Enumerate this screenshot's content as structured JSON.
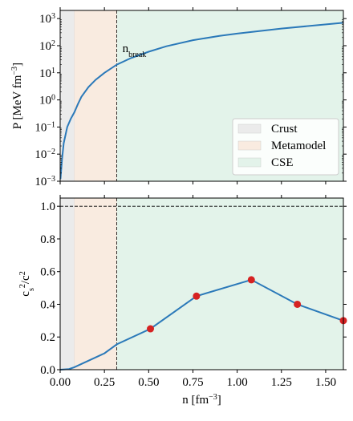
{
  "chart_data": [
    {
      "type": "line",
      "xlim": [
        0,
        1.6
      ],
      "ylim": [
        0.001,
        2000
      ],
      "log_y": true,
      "xticks": [
        0,
        0.25,
        0.5,
        0.75,
        1,
        1.25,
        1.5
      ],
      "yticks": [
        {
          "value": 0.001,
          "label": "10",
          "sup": "−3"
        },
        {
          "value": 0.01,
          "label": "10",
          "sup": "−2"
        },
        {
          "value": 0.1,
          "label": "10",
          "sup": "−1"
        },
        {
          "value": 1,
          "label": "10",
          "sup": "0"
        },
        {
          "value": 10,
          "label": "10",
          "sup": "1"
        },
        {
          "value": 100,
          "label": "10",
          "sup": "2"
        },
        {
          "value": 1000,
          "label": "10",
          "sup": "3"
        }
      ],
      "ylabel": {
        "main": "P [MeV fm",
        "sup": "−3",
        "end": "]"
      },
      "regions": [
        {
          "name": "Crust",
          "from": 0,
          "to": 0.08,
          "color": "#ebebeb"
        },
        {
          "name": "Metamodel",
          "from": 0.08,
          "to": 0.32,
          "color": "#f9ebe0"
        },
        {
          "name": "CSE",
          "from": 0.32,
          "to": 1.6,
          "color": "#e3f3ea"
        }
      ],
      "vline": 0.32,
      "legend": "lower right",
      "annotation": {
        "main": "n",
        "sub": "break"
      },
      "x": [
        0.002,
        0.01,
        0.02,
        0.04,
        0.06,
        0.08,
        0.1,
        0.12,
        0.16,
        0.2,
        0.25,
        0.32,
        0.4,
        0.5,
        0.6,
        0.75,
        0.9,
        1.0,
        1.25,
        1.6
      ],
      "series": [
        {
          "color": "#2b79b9",
          "values": [
            0.0012,
            0.006,
            0.025,
            0.1,
            0.2,
            0.35,
            0.7,
            1.3,
            3,
            5.5,
            10,
            20,
            35,
            60,
            95,
            160,
            230,
            280,
            430,
            700
          ]
        }
      ]
    },
    {
      "type": "line",
      "xlim": [
        0,
        1.6
      ],
      "ylim": [
        0,
        1.05
      ],
      "xticks": [
        {
          "value": 0,
          "label": "0.00"
        },
        {
          "value": 0.25,
          "label": "0.25"
        },
        {
          "value": 0.5,
          "label": "0.50"
        },
        {
          "value": 0.75,
          "label": "0.75"
        },
        {
          "value": 1,
          "label": "1.00"
        },
        {
          "value": 1.25,
          "label": "1.25"
        },
        {
          "value": 1.5,
          "label": "1.50"
        }
      ],
      "yticks": [
        {
          "value": 0,
          "label": "0.0"
        },
        {
          "value": 0.2,
          "label": "0.2"
        },
        {
          "value": 0.4,
          "label": "0.4"
        },
        {
          "value": 0.6,
          "label": "0.6"
        },
        {
          "value": 0.8,
          "label": "0.8"
        },
        {
          "value": 1,
          "label": "1.0"
        }
      ],
      "xlabel": {
        "main": "n [fm",
        "sup": "−3",
        "end": "]"
      },
      "ylabel": {
        "main": "c",
        "sub": "s",
        "sup": "2",
        "mid": "/c",
        "sup2": "2"
      },
      "regions": [
        {
          "from": 0,
          "to": 0.08,
          "color": "#ebebeb"
        },
        {
          "from": 0.08,
          "to": 0.32,
          "color": "#f9ebe0"
        },
        {
          "from": 0.32,
          "to": 1.6,
          "color": "#e3f3ea"
        }
      ],
      "vline": 0.32,
      "hline": 1,
      "x": [
        0,
        0.05,
        0.08,
        0.15,
        0.25,
        0.32,
        0.51,
        0.77,
        1.08,
        1.34,
        1.6
      ],
      "series": [
        {
          "color": "#2b79b9",
          "values": [
            0,
            0.004,
            0.015,
            0.05,
            0.1,
            0.155,
            0.25,
            0.45,
            0.55,
            0.4,
            0.3
          ]
        }
      ],
      "points": {
        "color": "#d62222",
        "x": [
          0.51,
          0.77,
          1.08,
          1.34,
          1.6
        ],
        "values": [
          0.25,
          0.45,
          0.55,
          0.4,
          0.3
        ]
      }
    }
  ]
}
